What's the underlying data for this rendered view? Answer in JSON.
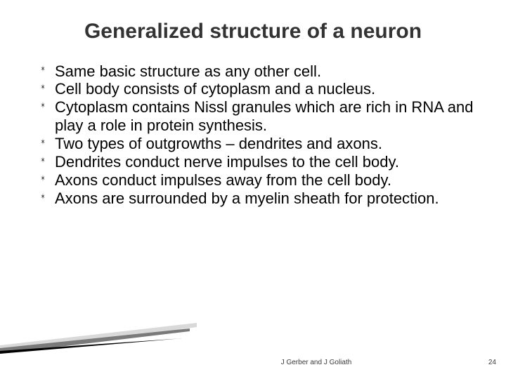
{
  "slide": {
    "title": "Generalized structure of a neuron",
    "title_fontsize": 30,
    "bullets": [
      "Same basic structure as any other cell.",
      "Cell body consists of cytoplasm and a nucleus.",
      "Cytoplasm contains Nissl granules which are rich in RNA and play a role in protein synthesis.",
      "Two types of outgrowths – dendrites and axons.",
      "Dendrites conduct nerve impulses to the cell body.",
      "Axons conduct impulses away from the cell body.",
      "Axons are surrounded by a myelin sheath for protection."
    ],
    "bullet_fontsize": 22,
    "bullet_lineheight": 1.18,
    "bullet_color": "#000000",
    "bullet_marker_glyph": "✶",
    "footer_author": "J Gerber and J Goliath",
    "footer_pagenum": "24",
    "footer_fontsize": 10,
    "background_color": "#ffffff",
    "title_color": "#333333",
    "wedge_colors": {
      "top": "#000000",
      "mid": "#7a7a7a",
      "light": "#d9d9d9"
    }
  }
}
